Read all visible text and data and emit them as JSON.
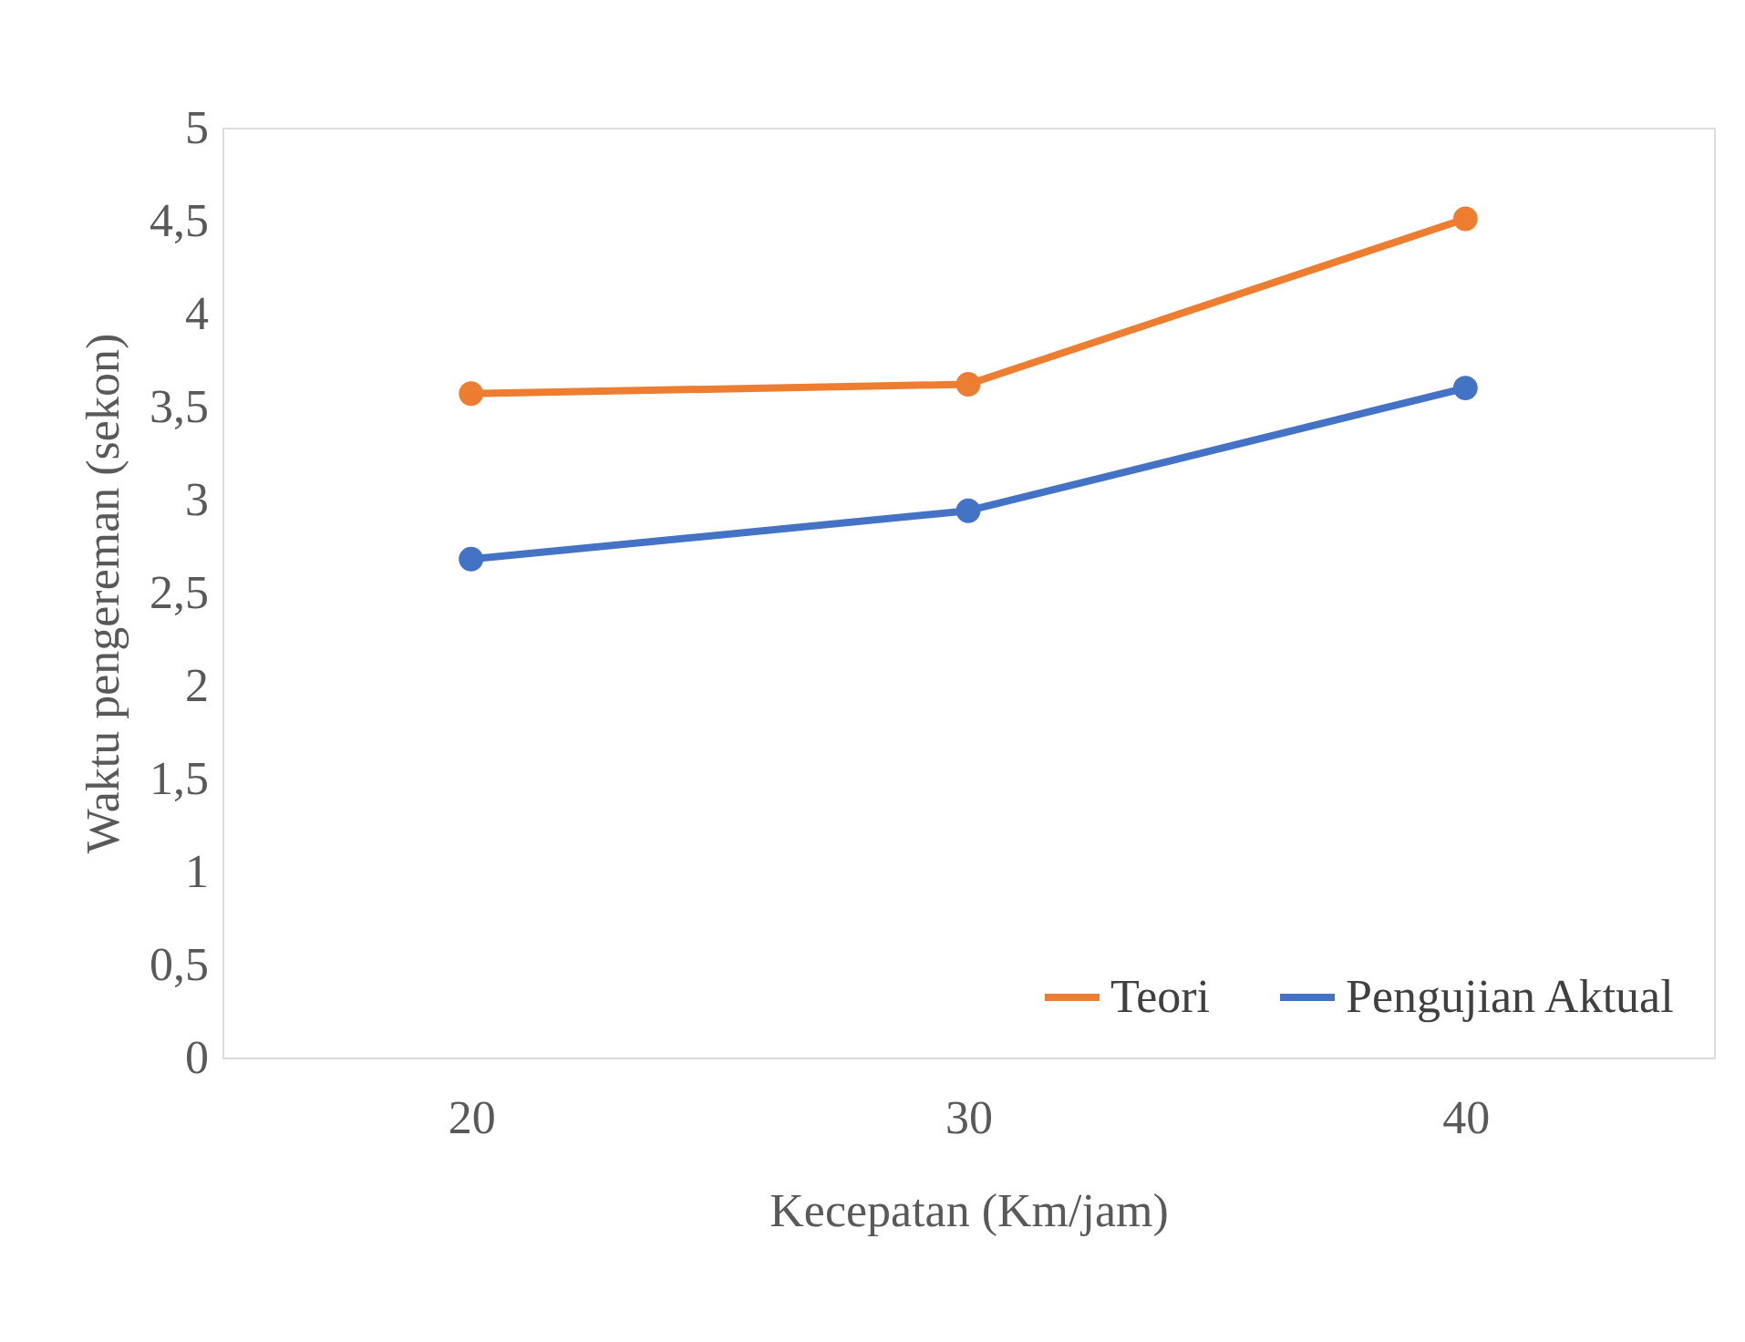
{
  "chart_data": {
    "type": "line",
    "xlabel": "Kecepatan (Km/jam)",
    "ylabel": "Waktu pengereman (sekon)",
    "categories": [
      "20",
      "30",
      "40"
    ],
    "series": [
      {
        "name": "Teori",
        "color": "#ed7d31",
        "values": [
          3.57,
          3.62,
          4.51
        ]
      },
      {
        "name": "Pengujian Aktual",
        "color": "#4472c4",
        "values": [
          2.68,
          2.94,
          3.6
        ]
      }
    ],
    "ylim": [
      0,
      5
    ],
    "yticks": [
      0,
      {
        "value": 0.5,
        "label": "0,5"
      },
      1,
      {
        "value": 1.5,
        "label": "1,5"
      },
      2,
      {
        "value": 2.5,
        "label": "2,5"
      },
      3,
      {
        "value": 3.5,
        "label": "3,5"
      },
      4,
      {
        "value": 4.5,
        "label": "4,5"
      },
      5
    ],
    "grid": false,
    "legend": "bottom right",
    "marker": "circle",
    "line_style": "solid"
  }
}
